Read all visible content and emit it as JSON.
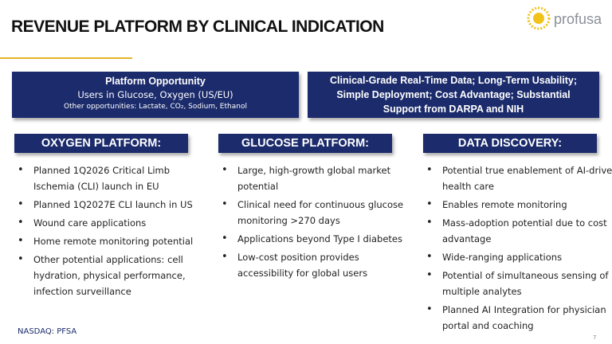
{
  "header": {
    "title": "REVENUE PLATFORM BY CLINICAL INDICATION",
    "logo": "profusa"
  },
  "opportunity": {
    "heading": "Platform Opportunity",
    "line": "Users in Glucose, Oxygen (US/EU)",
    "other": "Other opportunities: Lactate, CO₂, Sodium, Ethanol"
  },
  "advantages": "Clinical-Grade Real-Time Data; Long-Term Usability; Simple Deployment; Cost Advantage; Substantial Support from DARPA and NIH",
  "columns": [
    {
      "heading": "OXYGEN PLATFORM:",
      "bullets": [
        "Planned 1Q2026 Critical Limb Ischemia (CLI) launch in EU",
        "Planned 1Q2027E CLI launch in US",
        "Wound care applications",
        "Home remote monitoring potential",
        "Other potential applications: cell hydration, physical performance, infection surveillance"
      ]
    },
    {
      "heading": "GLUCOSE PLATFORM:",
      "bullets": [
        "Large, high-growth global market potential",
        "Clinical need for continuous glucose monitoring >270 days",
        "Applications beyond Type I diabetes",
        "Low-cost position provides accessibility for global users"
      ]
    },
    {
      "heading": "DATA DISCOVERY:",
      "bullets": [
        "Potential true enablement of AI-driven health care",
        "Enables remote monitoring",
        "Mass-adoption potential due to cost advantage",
        "Wide-ranging applications",
        "Potential of simultaneous sensing of multiple analytes",
        "Planned AI Integration for physician portal and coaching"
      ]
    }
  ],
  "footer": {
    "ticker": "NASDAQ: PFSA",
    "page": "7"
  }
}
